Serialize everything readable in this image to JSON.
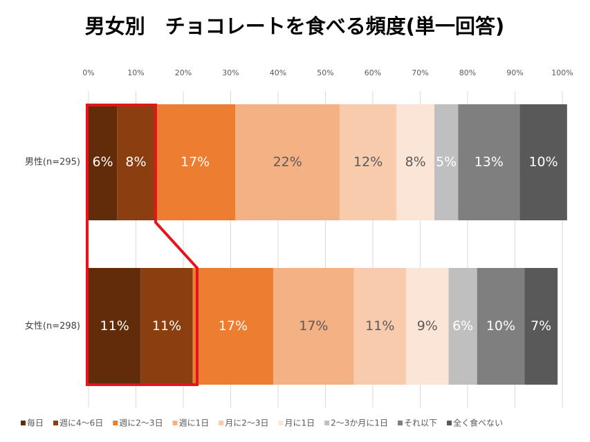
{
  "chart_data": {
    "type": "stacked_barh",
    "title": "男女別　チョコレートを食べる頻度(単一回答)",
    "categories": [
      "男性(n=295)",
      "女性(n=298)"
    ],
    "xlim": [
      0,
      100
    ],
    "xticks": [
      {
        "value": 0,
        "label": "0%"
      },
      {
        "value": 10,
        "label": "10%"
      },
      {
        "value": 20,
        "label": "20%"
      },
      {
        "value": 30,
        "label": "30%"
      },
      {
        "value": 40,
        "label": "40%"
      },
      {
        "value": 50,
        "label": "50%"
      },
      {
        "value": 60,
        "label": "60%"
      },
      {
        "value": 70,
        "label": "70%"
      },
      {
        "value": 80,
        "label": "80%"
      },
      {
        "value": 90,
        "label": "90%"
      },
      {
        "value": 100,
        "label": "100%"
      }
    ],
    "grid": true,
    "legend": "bottom",
    "series": [
      {
        "name": "毎日",
        "color": "#622c0a",
        "label_color": "#ffffff",
        "values": [
          6,
          11
        ],
        "value_labels": [
          "6%",
          "11%"
        ]
      },
      {
        "name": "週に4〜6日",
        "color": "#8b3f10",
        "label_color": "#ffffff",
        "values": [
          8,
          11
        ],
        "value_labels": [
          "8%",
          "11%"
        ]
      },
      {
        "name": "週に2〜3日",
        "color": "#ed7d31",
        "label_color": "#ffffff",
        "values": [
          17,
          17
        ],
        "value_labels": [
          "17%",
          "17%"
        ]
      },
      {
        "name": "週に1日",
        "color": "#f4b183",
        "label_color": "#595959",
        "values": [
          22,
          17
        ],
        "value_labels": [
          "22%",
          "17%"
        ]
      },
      {
        "name": "月に2〜3日",
        "color": "#f8cbad",
        "label_color": "#595959",
        "values": [
          12,
          11
        ],
        "value_labels": [
          "12%",
          "11%"
        ]
      },
      {
        "name": "月に1日",
        "color": "#fbe5d6",
        "label_color": "#595959",
        "values": [
          8,
          9
        ],
        "value_labels": [
          "8%",
          "9%"
        ]
      },
      {
        "name": "2〜3か月に1日",
        "color": "#bfbfbf",
        "label_color": "#ffffff",
        "values": [
          5,
          6
        ],
        "value_labels": [
          "5%",
          "6%"
        ]
      },
      {
        "name": "それ以下",
        "color": "#7f7f7f",
        "label_color": "#ffffff",
        "values": [
          13,
          10
        ],
        "value_labels": [
          "13%",
          "10%"
        ]
      },
      {
        "name": "全く食べない",
        "color": "#595959",
        "label_color": "#ffffff",
        "values": [
          10,
          7
        ],
        "value_labels": [
          "10%",
          "7%"
        ]
      }
    ]
  }
}
